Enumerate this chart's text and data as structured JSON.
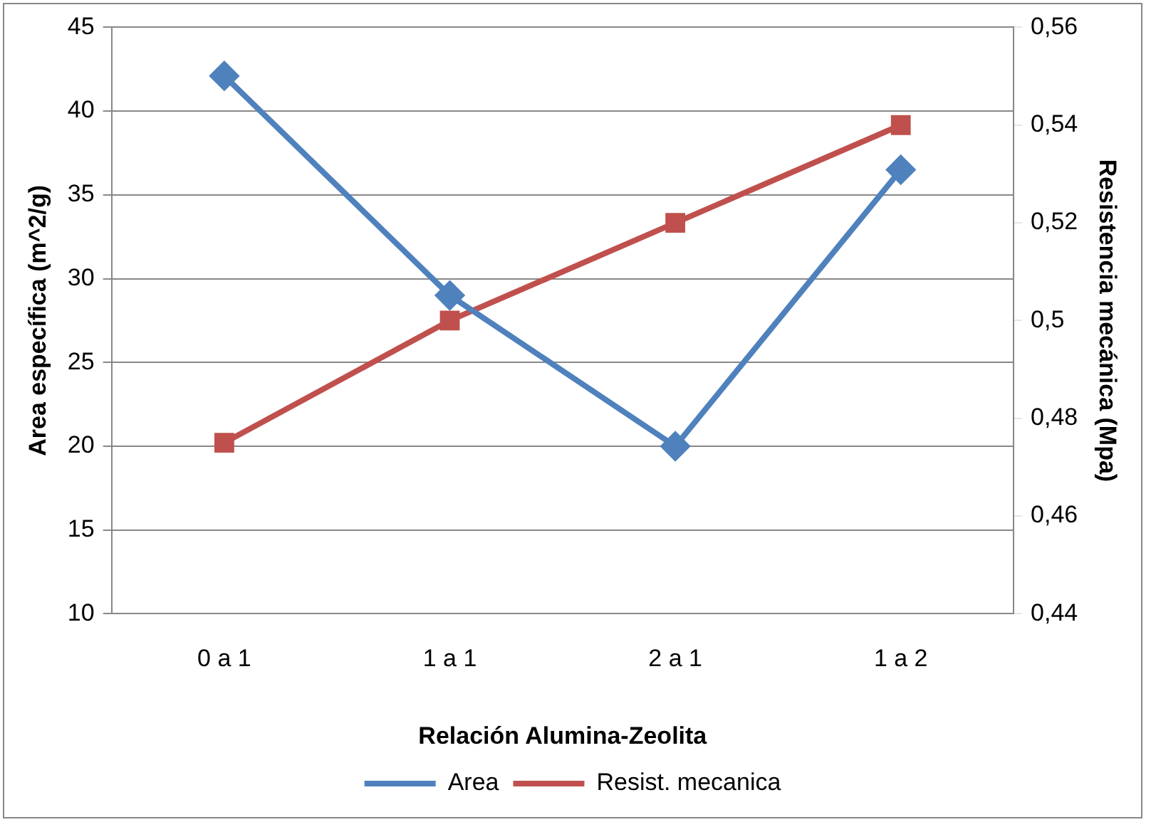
{
  "chart_data": {
    "type": "line",
    "xlabel": "Relación Alumina-Zeolita",
    "ylabel": "Area específica (m^2/g)",
    "y2label": "Resistencia mecánica (Mpa)",
    "categories": [
      "0 a 1",
      "1 a 1",
      "2 a 1",
      "1 a 2"
    ],
    "series": [
      {
        "name": "Area",
        "color": "#4f81bd",
        "marker": "diamond",
        "values": [
          42.1,
          29,
          20,
          36.5
        ]
      },
      {
        "name": "Resist. mecanica",
        "color": "#c0504d",
        "marker": "square",
        "axis": "y2",
        "values": [
          0.475,
          0.5,
          0.52,
          0.54
        ]
      }
    ],
    "ylim": [
      10,
      45
    ],
    "yticks": [
      10,
      15,
      20,
      25,
      30,
      35,
      40,
      45
    ],
    "y2lim": [
      0.44,
      0.56
    ],
    "y2ticks": [
      {
        "value": 0.44,
        "label": "0,44"
      },
      {
        "value": 0.46,
        "label": "0,46"
      },
      {
        "value": 0.48,
        "label": "0,48"
      },
      {
        "value": 0.5,
        "label": "0,5"
      },
      {
        "value": 0.52,
        "label": "0,52"
      },
      {
        "value": 0.54,
        "label": "0,54"
      },
      {
        "value": 0.56,
        "label": "0,56"
      }
    ],
    "grid": "y",
    "legend": "bottom",
    "line_style": "solid"
  }
}
